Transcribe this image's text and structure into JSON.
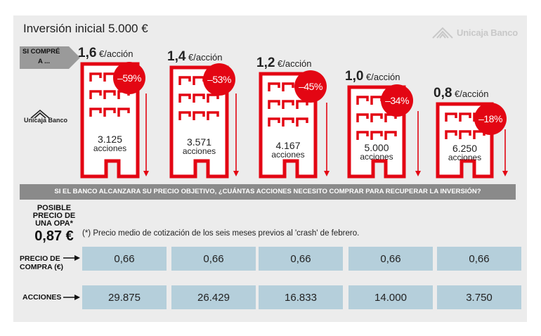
{
  "title": "Inversión inicial 5.000 €",
  "brand": "Unicaja Banco",
  "si_compre": [
    "SI COMPRÉ",
    "A ..."
  ],
  "unit": "€/acción",
  "question": "SI EL BANCO ALCANZARA SU PRECIO OBJETIVO, ¿CUÁNTAS ACCIONES NECESITO COMPRAR PARA RECUPERAR LA INVERSIÓN?",
  "opa": {
    "label": [
      "POSIBLE",
      "PRECIO DE",
      "UNA OPA*"
    ],
    "value": "0,87 €"
  },
  "note": "(*) Precio medio de cotización de los seis meses previos al 'crash' de febrero.",
  "row_labels": {
    "precio": [
      "PRECIO DE",
      "COMPRA (€)"
    ],
    "acciones": "ACCIONES"
  },
  "colors": {
    "red": "#e30613",
    "gray_banner": "#8a8a8a",
    "cell_blue": "#b5cfdb",
    "panel": "#ececec"
  },
  "chart_data": {
    "type": "table",
    "categories": [
      "1,6",
      "1,4",
      "1,2",
      "1,0",
      "0,8"
    ],
    "price_per_share": [
      1.6,
      1.4,
      1.2,
      1.0,
      0.8
    ],
    "price_labels": [
      "1,6",
      "1,4",
      "1,2",
      "1,0",
      "0,8"
    ],
    "shares_bought": [
      "3.125",
      "3.571",
      "4.167",
      "5.000",
      "6.250"
    ],
    "shares_word": "acciones",
    "drop_percent": [
      -59,
      -53,
      -45,
      -34,
      -18
    ],
    "drop_labels": [
      "–59%",
      "–53%",
      "–45%",
      "–34%",
      "–18%"
    ],
    "purchase_price": [
      "0,66",
      "0,66",
      "0,66",
      "0,66",
      "0,66"
    ],
    "shares_needed": [
      "29.875",
      "26.429",
      "16.833",
      "14.000",
      "3.750"
    ]
  }
}
